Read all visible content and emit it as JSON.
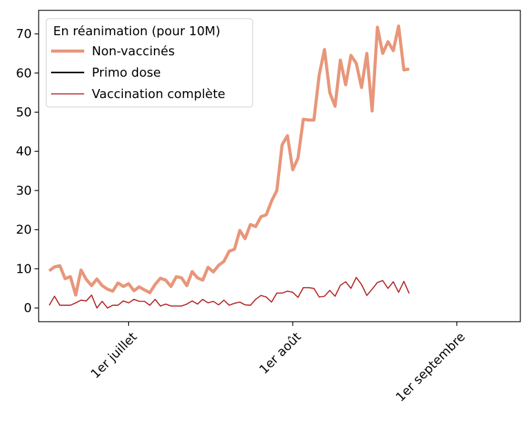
{
  "chart_data": {
    "type": "line",
    "title": "",
    "xlabel": "",
    "ylabel": "",
    "x_start": "2021-06-16",
    "x_end": "2021-08-21",
    "xlim": [
      "2021-06-14",
      "2021-09-13"
    ],
    "ylim": [
      -3.5,
      76
    ],
    "y_ticks": [
      0,
      10,
      20,
      30,
      40,
      50,
      60,
      70
    ],
    "x_ticks": [
      {
        "date": "2021-07-01",
        "label": "1er juillet"
      },
      {
        "date": "2021-08-01",
        "label": "1er août"
      },
      {
        "date": "2021-09-01",
        "label": "1er septembre"
      }
    ],
    "grid": false,
    "legend": {
      "title": "En réanimation (pour 10M)",
      "placement": "top-left"
    },
    "series": [
      {
        "name": "Non-vaccinés",
        "color": "#e8967a",
        "values": [
          9.5,
          10.5,
          10.8,
          7.5,
          8.0,
          3.3,
          9.7,
          7.3,
          5.7,
          7.4,
          5.7,
          4.8,
          4.3,
          6.4,
          5.5,
          6.2,
          4.4,
          5.4,
          4.6,
          3.9,
          6.0,
          7.6,
          7.1,
          5.5,
          8.0,
          7.7,
          5.7,
          9.3,
          7.7,
          7.1,
          10.4,
          9.2,
          10.9,
          11.9,
          14.5,
          15.0,
          19.8,
          17.7,
          21.3,
          20.8,
          23.3,
          23.8,
          27.3,
          30.0,
          41.7,
          44.0,
          35.3,
          38.3,
          48.2,
          48.0,
          48.0,
          59.5,
          66.0,
          55.0,
          51.5,
          63.3,
          57.0,
          64.5,
          62.5,
          56.3,
          65.0,
          50.3,
          71.7,
          65.0,
          68.0,
          65.7,
          72.0,
          60.8,
          61.0
        ]
      },
      {
        "name": "Primo dose",
        "color": "#000000",
        "values": []
      },
      {
        "name": "Vaccination complète",
        "color": "#b22222",
        "values": [
          0.7,
          3.0,
          0.7,
          0.7,
          0.7,
          1.3,
          2.0,
          1.8,
          3.3,
          0.0,
          1.7,
          0.0,
          0.7,
          0.7,
          1.8,
          1.3,
          2.2,
          1.7,
          1.7,
          0.7,
          2.2,
          0.5,
          1.0,
          0.5,
          0.5,
          0.5,
          1.0,
          1.8,
          1.0,
          2.2,
          1.3,
          1.7,
          0.8,
          2.0,
          0.7,
          1.2,
          1.5,
          0.8,
          0.7,
          2.2,
          3.2,
          2.8,
          1.5,
          3.8,
          3.8,
          4.3,
          4.0,
          2.7,
          5.2,
          5.2,
          5.0,
          2.8,
          3.0,
          4.5,
          3.0,
          5.8,
          6.7,
          5.0,
          7.8,
          6.0,
          3.2,
          4.8,
          6.5,
          7.0,
          5.0,
          6.7,
          4.0,
          6.8,
          3.7
        ]
      }
    ]
  }
}
